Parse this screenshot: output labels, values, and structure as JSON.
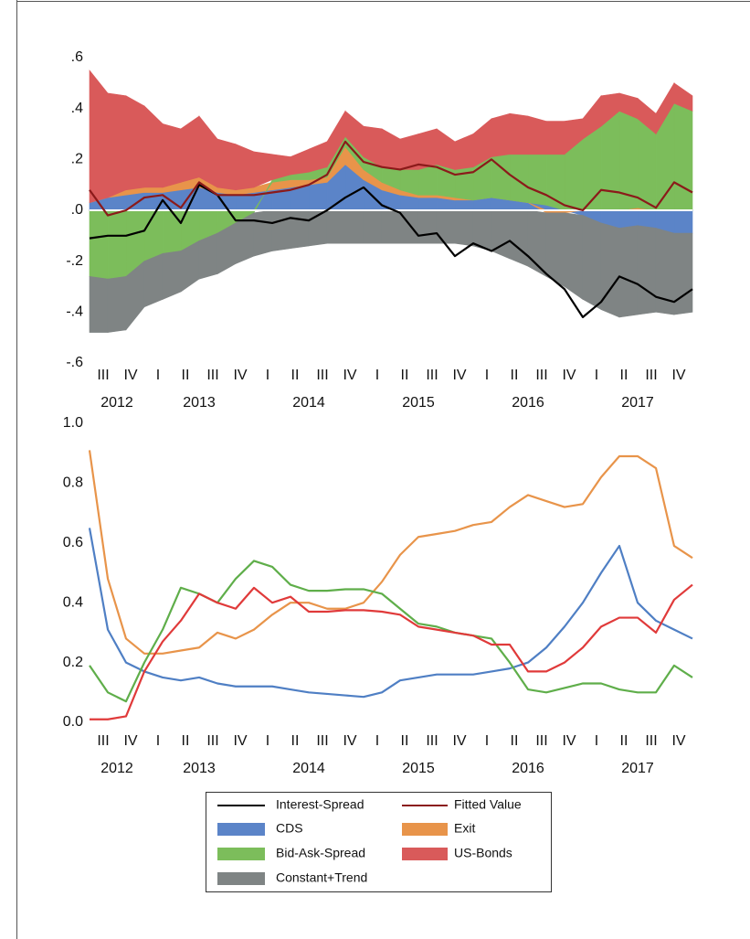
{
  "chart_data": [
    {
      "type": "stacked_area",
      "x": [
        2012.5,
        2012.667,
        2012.833,
        2013.0,
        2013.167,
        2013.333,
        2013.5,
        2013.667,
        2013.833,
        2014.0,
        2014.167,
        2014.333,
        2014.5,
        2014.667,
        2014.833,
        2015.0,
        2015.167,
        2015.333,
        2015.5,
        2015.667,
        2015.833,
        2016.0,
        2016.167,
        2016.333,
        2016.5,
        2016.667,
        2016.833,
        2017.0,
        2017.167,
        2017.333,
        2017.5,
        2017.667,
        2017.833,
        2018.0
      ],
      "xlim": [
        2012.5,
        2018.0
      ],
      "xticks": [
        {
          "value": 2012.625,
          "label": "III"
        },
        {
          "value": 2012.875,
          "label": "IV"
        },
        {
          "value": 2013.125,
          "label": "I"
        },
        {
          "value": 2013.375,
          "label": "II"
        },
        {
          "value": 2013.625,
          "label": "III"
        },
        {
          "value": 2013.875,
          "label": "IV"
        },
        {
          "value": 2014.125,
          "label": "I"
        },
        {
          "value": 2014.375,
          "label": "II"
        },
        {
          "value": 2014.625,
          "label": "III"
        },
        {
          "value": 2014.875,
          "label": "IV"
        },
        {
          "value": 2015.125,
          "label": "I"
        },
        {
          "value": 2015.375,
          "label": "II"
        },
        {
          "value": 2015.625,
          "label": "III"
        },
        {
          "value": 2015.875,
          "label": "IV"
        },
        {
          "value": 2016.125,
          "label": "I"
        },
        {
          "value": 2016.375,
          "label": "II"
        },
        {
          "value": 2016.625,
          "label": "III"
        },
        {
          "value": 2016.875,
          "label": "IV"
        },
        {
          "value": 2017.125,
          "label": "I"
        },
        {
          "value": 2017.375,
          "label": "II"
        },
        {
          "value": 2017.625,
          "label": "III"
        },
        {
          "value": 2017.875,
          "label": "IV"
        }
      ],
      "year_ticks": [
        {
          "value": 2012.75,
          "label": "2012"
        },
        {
          "value": 2013.5,
          "label": "2013"
        },
        {
          "value": 2014.5,
          "label": "2014"
        },
        {
          "value": 2015.5,
          "label": "2015"
        },
        {
          "value": 2016.5,
          "label": "2016"
        },
        {
          "value": 2017.5,
          "label": "2017"
        }
      ],
      "ylim": [
        -0.6,
        0.6
      ],
      "yticks": [
        {
          "value": 0.6,
          "label": ".6"
        },
        {
          "value": 0.4,
          "label": ".4"
        },
        {
          "value": 0.2,
          "label": ".2"
        },
        {
          "value": 0,
          "label": ".0"
        },
        {
          "value": -0.2,
          "label": "-.2"
        },
        {
          "value": -0.4,
          "label": "-.4"
        },
        {
          "value": -0.6,
          "label": "-.6"
        }
      ],
      "series": [
        {
          "name": "Interest-Spread",
          "type": "line",
          "color": "#000000",
          "values": [
            -0.11,
            -0.1,
            -0.1,
            -0.08,
            0.04,
            -0.05,
            0.1,
            0.06,
            -0.04,
            -0.04,
            -0.05,
            -0.03,
            -0.04,
            0.0,
            0.05,
            0.09,
            0.02,
            -0.01,
            -0.1,
            -0.09,
            -0.18,
            -0.13,
            -0.16,
            -0.12,
            -0.18,
            -0.25,
            -0.31,
            -0.42,
            -0.36,
            -0.26,
            -0.29,
            -0.34,
            -0.36,
            -0.31
          ]
        },
        {
          "name": "Fitted Value",
          "type": "line",
          "color": "#8b1a1a",
          "values": [
            0.08,
            -0.02,
            0.0,
            0.05,
            0.06,
            0.01,
            0.11,
            0.06,
            0.06,
            0.06,
            0.07,
            0.08,
            0.1,
            0.14,
            0.27,
            0.19,
            0.17,
            0.16,
            0.18,
            0.17,
            0.14,
            0.15,
            0.2,
            0.14,
            0.09,
            0.06,
            0.02,
            0.0,
            0.08,
            0.07,
            0.05,
            0.01,
            0.11,
            0.07
          ]
        },
        {
          "name": "CDS",
          "type": "area",
          "color": "#5b84c8",
          "values": [
            0.03,
            0.05,
            0.06,
            0.07,
            0.07,
            0.08,
            0.09,
            0.07,
            0.06,
            0.07,
            0.08,
            0.09,
            0.1,
            0.11,
            0.18,
            0.12,
            0.08,
            0.06,
            0.05,
            0.05,
            0.04,
            0.04,
            0.05,
            0.04,
            0.03,
            0.02,
            0.0,
            -0.02,
            -0.05,
            -0.07,
            -0.06,
            -0.07,
            -0.09,
            -0.09
          ]
        },
        {
          "name": "Exit",
          "type": "area",
          "color": "#e8944a",
          "values": [
            0.0,
            0.0,
            0.02,
            0.02,
            0.02,
            0.03,
            0.04,
            0.02,
            0.02,
            0.02,
            0.03,
            0.03,
            0.02,
            0.02,
            0.07,
            0.04,
            0.03,
            0.02,
            0.01,
            0.01,
            0.01,
            0.0,
            0.0,
            0.0,
            0.0,
            -0.01,
            -0.01,
            0.0,
            0.0,
            0.0,
            0.01,
            0.0,
            0.0,
            0.0
          ]
        },
        {
          "name": "Bid-Ask-Spread",
          "type": "area",
          "color": "#7cbd5b",
          "values": [
            -0.26,
            -0.27,
            -0.26,
            -0.2,
            -0.17,
            -0.16,
            -0.12,
            -0.09,
            -0.05,
            -0.01,
            0.01,
            0.02,
            0.03,
            0.04,
            0.04,
            0.05,
            0.06,
            0.08,
            0.1,
            0.12,
            0.11,
            0.13,
            0.16,
            0.18,
            0.19,
            0.2,
            0.22,
            0.28,
            0.33,
            0.39,
            0.35,
            0.3,
            0.42,
            0.39
          ]
        },
        {
          "name": "US-Bonds",
          "type": "area",
          "color": "#d95a5a",
          "values": [
            0.52,
            0.41,
            0.37,
            0.32,
            0.25,
            0.21,
            0.24,
            0.19,
            0.18,
            0.14,
            0.1,
            0.07,
            0.09,
            0.1,
            0.1,
            0.12,
            0.15,
            0.12,
            0.14,
            0.14,
            0.11,
            0.13,
            0.15,
            0.16,
            0.15,
            0.13,
            0.13,
            0.08,
            0.12,
            0.07,
            0.08,
            0.08,
            0.08,
            0.06
          ]
        },
        {
          "name": "Constant+Trend",
          "type": "area",
          "color": "#7f8484",
          "values": [
            -0.22,
            -0.21,
            -0.21,
            -0.18,
            -0.18,
            -0.16,
            -0.15,
            -0.16,
            -0.16,
            -0.17,
            -0.16,
            -0.15,
            -0.14,
            -0.13,
            -0.13,
            -0.13,
            -0.13,
            -0.13,
            -0.13,
            -0.13,
            -0.13,
            -0.14,
            -0.16,
            -0.19,
            -0.22,
            -0.25,
            -0.29,
            -0.33,
            -0.34,
            -0.35,
            -0.35,
            -0.33,
            -0.32,
            -0.31
          ]
        }
      ]
    },
    {
      "type": "line",
      "x": [
        2012.5,
        2012.667,
        2012.833,
        2013.0,
        2013.167,
        2013.333,
        2013.5,
        2013.667,
        2013.833,
        2014.0,
        2014.167,
        2014.333,
        2014.5,
        2014.667,
        2014.833,
        2015.0,
        2015.167,
        2015.333,
        2015.5,
        2015.667,
        2015.833,
        2016.0,
        2016.167,
        2016.333,
        2016.5,
        2016.667,
        2016.833,
        2017.0,
        2017.167,
        2017.333,
        2017.5,
        2017.667,
        2017.833,
        2018.0
      ],
      "xlim": [
        2012.5,
        2018.0
      ],
      "xticks": [
        {
          "value": 2012.625,
          "label": "III"
        },
        {
          "value": 2012.875,
          "label": "IV"
        },
        {
          "value": 2013.125,
          "label": "I"
        },
        {
          "value": 2013.375,
          "label": "II"
        },
        {
          "value": 2013.625,
          "label": "III"
        },
        {
          "value": 2013.875,
          "label": "IV"
        },
        {
          "value": 2014.125,
          "label": "I"
        },
        {
          "value": 2014.375,
          "label": "II"
        },
        {
          "value": 2014.625,
          "label": "III"
        },
        {
          "value": 2014.875,
          "label": "IV"
        },
        {
          "value": 2015.125,
          "label": "I"
        },
        {
          "value": 2015.375,
          "label": "II"
        },
        {
          "value": 2015.625,
          "label": "III"
        },
        {
          "value": 2015.875,
          "label": "IV"
        },
        {
          "value": 2016.125,
          "label": "I"
        },
        {
          "value": 2016.375,
          "label": "II"
        },
        {
          "value": 2016.625,
          "label": "III"
        },
        {
          "value": 2016.875,
          "label": "IV"
        },
        {
          "value": 2017.125,
          "label": "I"
        },
        {
          "value": 2017.375,
          "label": "II"
        },
        {
          "value": 2017.625,
          "label": "III"
        },
        {
          "value": 2017.875,
          "label": "IV"
        }
      ],
      "year_ticks": [
        {
          "value": 2012.75,
          "label": "2012"
        },
        {
          "value": 2013.5,
          "label": "2013"
        },
        {
          "value": 2014.5,
          "label": "2014"
        },
        {
          "value": 2015.5,
          "label": "2015"
        },
        {
          "value": 2016.5,
          "label": "2016"
        },
        {
          "value": 2017.5,
          "label": "2017"
        }
      ],
      "ylim": [
        0,
        1
      ],
      "yticks": [
        {
          "value": 0,
          "label": "0.0"
        },
        {
          "value": 0.2,
          "label": "0.2"
        },
        {
          "value": 0.4,
          "label": "0.4"
        },
        {
          "value": 0.6,
          "label": "0.6"
        },
        {
          "value": 0.8,
          "label": "0.8"
        },
        {
          "value": 1,
          "label": "1.0"
        }
      ],
      "series": [
        {
          "color": "#e8944a",
          "values": [
            0.91,
            0.48,
            0.28,
            0.23,
            0.23,
            0.24,
            0.25,
            0.3,
            0.28,
            0.31,
            0.36,
            0.4,
            0.4,
            0.38,
            0.38,
            0.4,
            0.47,
            0.56,
            0.62,
            0.63,
            0.64,
            0.66,
            0.67,
            0.72,
            0.76,
            0.74,
            0.72,
            0.73,
            0.82,
            0.89,
            0.89,
            0.85,
            0.59,
            0.55
          ]
        },
        {
          "color": "#4f7fc4",
          "values": [
            0.65,
            0.31,
            0.2,
            0.17,
            0.15,
            0.14,
            0.15,
            0.13,
            0.12,
            0.12,
            0.12,
            0.11,
            0.1,
            0.095,
            0.09,
            0.085,
            0.1,
            0.14,
            0.15,
            0.16,
            0.16,
            0.16,
            0.17,
            0.18,
            0.2,
            0.25,
            0.32,
            0.4,
            0.5,
            0.59,
            0.4,
            0.34,
            0.31,
            0.28
          ]
        },
        {
          "color": "#5fae4a",
          "values": [
            0.19,
            0.1,
            0.07,
            0.2,
            0.31,
            0.45,
            0.43,
            0.4,
            0.48,
            0.54,
            0.52,
            0.46,
            0.44,
            0.44,
            0.445,
            0.445,
            0.43,
            0.38,
            0.33,
            0.32,
            0.3,
            0.29,
            0.28,
            0.2,
            0.11,
            0.1,
            0.115,
            0.13,
            0.13,
            0.11,
            0.1,
            0.1,
            0.19,
            0.15
          ]
        },
        {
          "color": "#e03a3a",
          "values": [
            0.01,
            0.01,
            0.02,
            0.17,
            0.27,
            0.34,
            0.43,
            0.4,
            0.38,
            0.45,
            0.4,
            0.42,
            0.37,
            0.37,
            0.375,
            0.375,
            0.37,
            0.36,
            0.32,
            0.31,
            0.3,
            0.29,
            0.26,
            0.26,
            0.17,
            0.17,
            0.2,
            0.25,
            0.32,
            0.35,
            0.35,
            0.3,
            0.41,
            0.46
          ]
        }
      ]
    }
  ]
}
